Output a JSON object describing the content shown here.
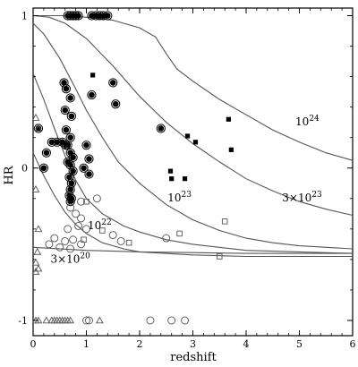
{
  "chart_data": {
    "type": "scatter",
    "xlabel": "redshift",
    "ylabel": "HR",
    "xlim": [
      0,
      6
    ],
    "ylim": [
      -1.1,
      1.05
    ],
    "x_ticks": [
      0,
      1,
      2,
      3,
      4,
      5,
      6
    ],
    "y_ticks": [
      -1,
      0,
      1
    ],
    "grid": false,
    "curve_labels": [
      {
        "id": "nh24",
        "base": "10",
        "exp": "24",
        "x": 5.15,
        "y": 0.28
      },
      {
        "id": "nh3e23",
        "base": "3×10",
        "exp": "23",
        "x": 5.05,
        "y": -0.22
      },
      {
        "id": "nh23",
        "base": "10",
        "exp": "23",
        "x": 2.75,
        "y": -0.22
      },
      {
        "id": "nh22",
        "base": "10",
        "exp": "22",
        "x": 1.25,
        "y": -0.4
      },
      {
        "id": "nh3e20",
        "base": "3×10",
        "exp": "20",
        "x": 0.7,
        "y": -0.62
      }
    ],
    "curves": [
      {
        "id": "nh24",
        "points": [
          [
            0,
            1.0
          ],
          [
            0.5,
            1.0
          ],
          [
            1.0,
            0.99
          ],
          [
            1.5,
            0.97
          ],
          [
            2.0,
            0.92
          ],
          [
            2.3,
            0.86
          ],
          [
            2.5,
            0.75
          ],
          [
            2.7,
            0.65
          ],
          [
            3.0,
            0.57
          ],
          [
            3.5,
            0.45
          ],
          [
            4.0,
            0.35
          ],
          [
            4.5,
            0.25
          ],
          [
            5.0,
            0.17
          ],
          [
            5.5,
            0.1
          ],
          [
            6.0,
            0.05
          ]
        ]
      },
      {
        "id": "nh3e23",
        "points": [
          [
            0,
            1.0
          ],
          [
            0.3,
            0.99
          ],
          [
            0.6,
            0.95
          ],
          [
            1.0,
            0.85
          ],
          [
            1.5,
            0.67
          ],
          [
            2.0,
            0.47
          ],
          [
            2.5,
            0.3
          ],
          [
            3.0,
            0.16
          ],
          [
            3.5,
            0.04
          ],
          [
            4.0,
            -0.07
          ],
          [
            4.5,
            -0.15
          ],
          [
            5.0,
            -0.22
          ],
          [
            5.5,
            -0.27
          ],
          [
            6.0,
            -0.31
          ]
        ]
      },
      {
        "id": "nh23",
        "points": [
          [
            0,
            0.95
          ],
          [
            0.2,
            0.88
          ],
          [
            0.5,
            0.72
          ],
          [
            0.8,
            0.52
          ],
          [
            1.0,
            0.38
          ],
          [
            1.3,
            0.2
          ],
          [
            1.6,
            0.04
          ],
          [
            2.0,
            -0.1
          ],
          [
            2.5,
            -0.24
          ],
          [
            3.0,
            -0.34
          ],
          [
            3.5,
            -0.41
          ],
          [
            4.0,
            -0.46
          ],
          [
            4.5,
            -0.49
          ],
          [
            5.0,
            -0.51
          ],
          [
            6.0,
            -0.53
          ]
        ]
      },
      {
        "id": "nh22a",
        "points": [
          [
            0,
            0.62
          ],
          [
            0.2,
            0.45
          ],
          [
            0.4,
            0.26
          ],
          [
            0.6,
            0.08
          ],
          [
            0.8,
            -0.08
          ],
          [
            1.0,
            -0.2
          ],
          [
            1.3,
            -0.3
          ],
          [
            1.7,
            -0.38
          ],
          [
            2.0,
            -0.42
          ],
          [
            2.5,
            -0.47
          ],
          [
            3.0,
            -0.5
          ],
          [
            4.0,
            -0.54
          ],
          [
            5.0,
            -0.55
          ],
          [
            6.0,
            -0.56
          ]
        ]
      },
      {
        "id": "nh22b",
        "points": [
          [
            0,
            0.1
          ],
          [
            0.2,
            -0.05
          ],
          [
            0.4,
            -0.18
          ],
          [
            0.6,
            -0.29
          ],
          [
            0.8,
            -0.37
          ],
          [
            1.0,
            -0.43
          ],
          [
            1.3,
            -0.49
          ],
          [
            1.7,
            -0.53
          ],
          [
            2.0,
            -0.55
          ],
          [
            3.0,
            -0.57
          ],
          [
            4.0,
            -0.58
          ],
          [
            6.0,
            -0.58
          ]
        ]
      },
      {
        "id": "nh3e20",
        "points": [
          [
            0,
            -0.52
          ],
          [
            1.0,
            -0.54
          ],
          [
            2.0,
            -0.55
          ],
          [
            3.0,
            -0.555
          ],
          [
            4.0,
            -0.56
          ],
          [
            6.0,
            -0.56
          ]
        ]
      }
    ],
    "series": [
      {
        "marker": "filled-circle-ring",
        "points": [
          [
            0.65,
            1.0
          ],
          [
            0.7,
            1.0
          ],
          [
            0.75,
            1.0
          ],
          [
            0.8,
            1.0
          ],
          [
            0.85,
            1.0
          ],
          [
            1.1,
            1.0
          ],
          [
            1.18,
            1.0
          ],
          [
            1.25,
            1.0
          ],
          [
            1.32,
            1.0
          ],
          [
            1.4,
            1.0
          ],
          [
            0.58,
            0.56
          ],
          [
            0.62,
            0.52
          ],
          [
            0.7,
            0.46
          ],
          [
            0.6,
            0.38
          ],
          [
            0.72,
            0.34
          ],
          [
            0.62,
            0.25
          ],
          [
            0.7,
            0.2
          ],
          [
            0.65,
            0.15
          ],
          [
            1.1,
            0.48
          ],
          [
            1.5,
            0.56
          ],
          [
            1.55,
            0.42
          ],
          [
            0.1,
            0.26
          ],
          [
            0.35,
            0.17
          ],
          [
            0.45,
            0.17
          ],
          [
            0.55,
            0.17
          ],
          [
            0.62,
            0.15
          ],
          [
            0.25,
            0.1
          ],
          [
            0.7,
            0.1
          ],
          [
            0.75,
            0.07
          ],
          [
            0.65,
            0.04
          ],
          [
            0.7,
            0.02
          ],
          [
            0.75,
            -0.02
          ],
          [
            0.68,
            -0.06
          ],
          [
            0.72,
            -0.1
          ],
          [
            0.7,
            -0.14
          ],
          [
            0.68,
            -0.18
          ],
          [
            0.72,
            -0.2
          ],
          [
            0.7,
            -0.22
          ],
          [
            0.2,
            0.0
          ],
          [
            1.0,
            0.15
          ],
          [
            1.05,
            0.06
          ],
          [
            0.95,
            0.0
          ],
          [
            1.05,
            -0.04
          ],
          [
            2.4,
            0.26
          ]
        ]
      },
      {
        "marker": "filled-square",
        "points": [
          [
            1.12,
            0.61
          ],
          [
            3.67,
            0.32
          ],
          [
            2.9,
            0.21
          ],
          [
            3.05,
            0.17
          ],
          [
            3.72,
            0.12
          ],
          [
            2.58,
            -0.02
          ],
          [
            2.6,
            -0.07
          ],
          [
            2.85,
            -0.07
          ]
        ]
      },
      {
        "marker": "open-circle",
        "points": [
          [
            0.9,
            -0.22
          ],
          [
            1.2,
            -0.2
          ],
          [
            0.7,
            -0.26
          ],
          [
            0.8,
            -0.3
          ],
          [
            0.9,
            -0.33
          ],
          [
            0.65,
            -0.4
          ],
          [
            0.85,
            -0.38
          ],
          [
            1.0,
            -0.4
          ],
          [
            1.5,
            -0.44
          ],
          [
            0.4,
            -0.46
          ],
          [
            0.6,
            -0.48
          ],
          [
            0.75,
            -0.47
          ],
          [
            0.3,
            -0.5
          ],
          [
            0.5,
            -0.52
          ],
          [
            0.9,
            -0.5
          ],
          [
            1.65,
            -0.48
          ],
          [
            2.5,
            -0.46
          ],
          [
            0.7,
            -0.53
          ],
          [
            1.0,
            -1.0
          ],
          [
            1.05,
            -1.0
          ],
          [
            2.2,
            -1.0
          ],
          [
            2.6,
            -1.0
          ],
          [
            2.85,
            -1.0
          ]
        ]
      },
      {
        "marker": "open-square",
        "points": [
          [
            1.0,
            -0.22
          ],
          [
            1.3,
            -0.41
          ],
          [
            1.8,
            -0.49
          ],
          [
            2.75,
            -0.43
          ],
          [
            3.6,
            -0.35
          ],
          [
            3.5,
            -0.58
          ],
          [
            0.95,
            -0.47
          ]
        ]
      },
      {
        "marker": "open-triangle",
        "points": [
          [
            0.05,
            0.33
          ],
          [
            0.1,
            0.26
          ],
          [
            0.05,
            -0.14
          ],
          [
            0.1,
            -0.4
          ],
          [
            0.08,
            -0.55
          ],
          [
            0.05,
            -0.62
          ],
          [
            0.1,
            -0.66
          ],
          [
            0.05,
            -0.68
          ],
          [
            0.05,
            -1.0
          ],
          [
            0.1,
            -1.0
          ],
          [
            0.25,
            -1.0
          ],
          [
            0.35,
            -1.0
          ],
          [
            0.4,
            -1.0
          ],
          [
            0.45,
            -1.0
          ],
          [
            0.5,
            -1.0
          ],
          [
            0.55,
            -1.0
          ],
          [
            0.6,
            -1.0
          ],
          [
            0.65,
            -1.0
          ],
          [
            0.7,
            -1.0
          ],
          [
            1.25,
            -1.0
          ]
        ]
      }
    ]
  }
}
